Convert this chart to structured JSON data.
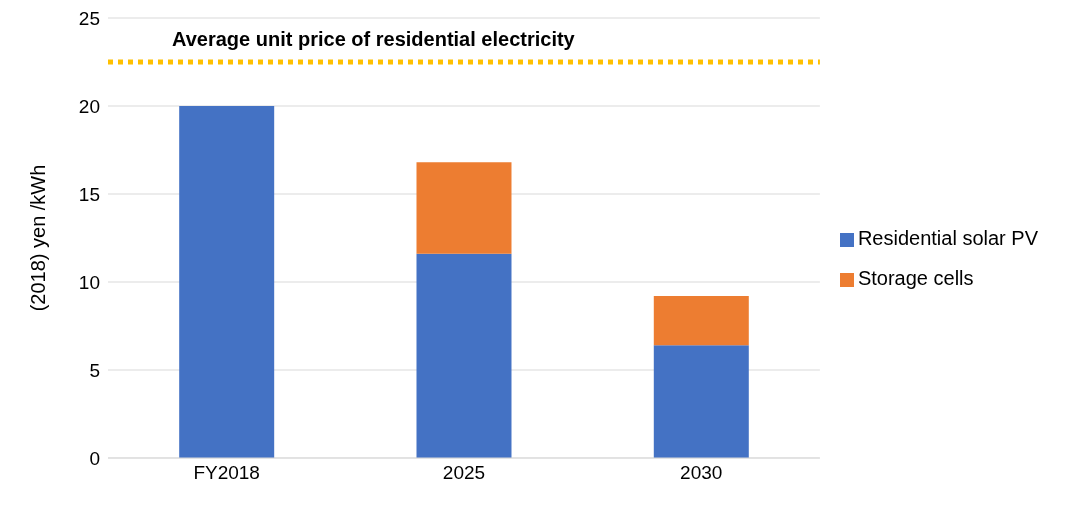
{
  "chart_data": {
    "type": "bar",
    "stacked": true,
    "ylabel": "(2018) yen /kWh",
    "categories": [
      "FY2018",
      "2025",
      "2030"
    ],
    "series": [
      {
        "name": "Residential solar PV",
        "color": "#4472c4",
        "values": [
          20,
          11.6,
          6.4
        ]
      },
      {
        "name": "Storage cells",
        "color": "#ed7d31",
        "values": [
          null,
          5.2,
          2.8
        ]
      }
    ],
    "ylim": [
      0,
      25
    ],
    "yticks": [
      0,
      5,
      10,
      15,
      20,
      25
    ],
    "grid": "y",
    "legend": "right",
    "ref_lines": [
      {
        "axis": "y",
        "value": 22.5,
        "label": "Average unit price of residential electricity",
        "color": "#ffc000",
        "line_style": "dotted"
      }
    ]
  }
}
